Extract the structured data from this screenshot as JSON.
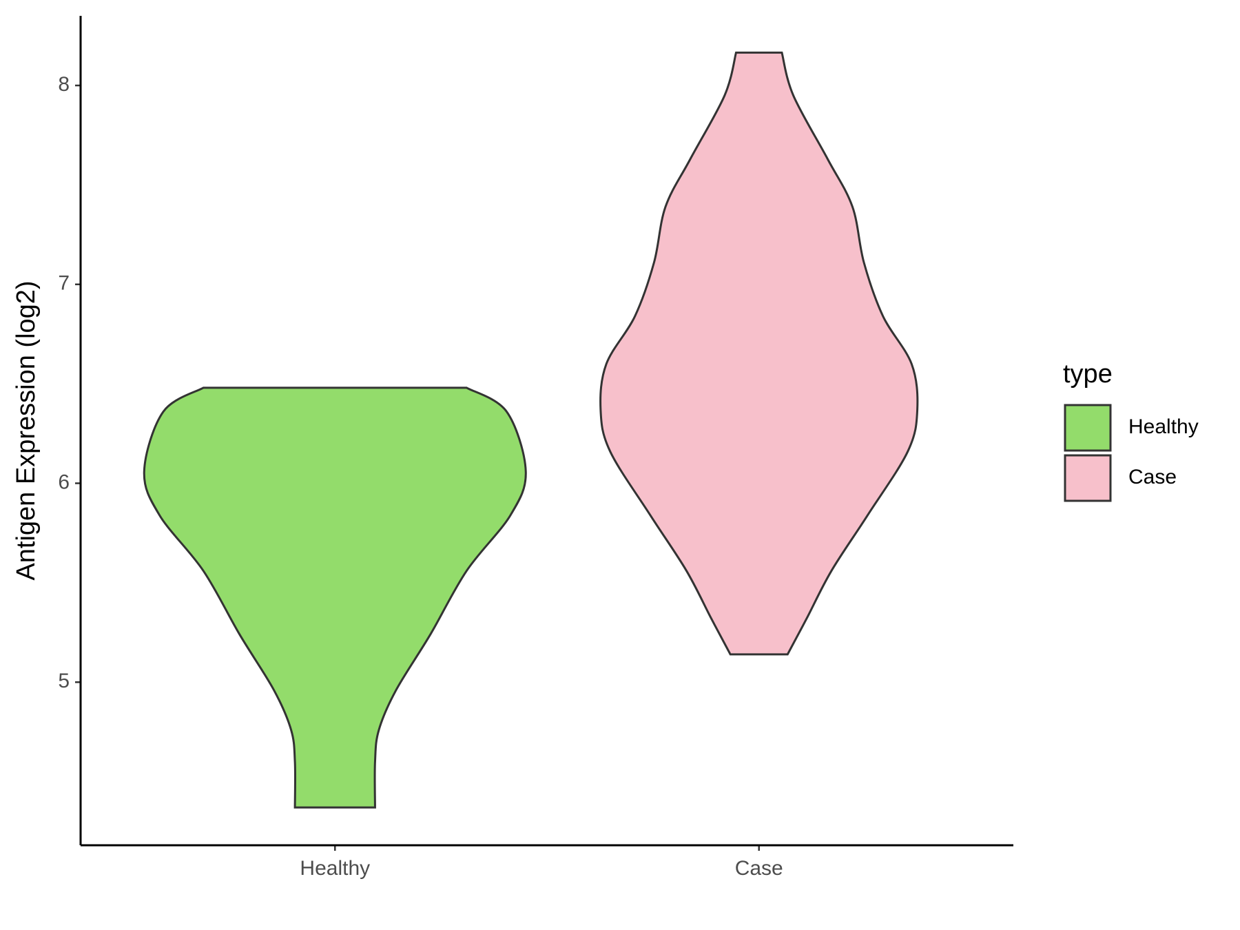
{
  "chart_data": {
    "type": "violin",
    "ylabel": "Antigen Expression (log2)",
    "categories": [
      "Healthy",
      "Case"
    ],
    "legend_title": "type",
    "series": [
      {
        "name": "Healthy",
        "color": "#93dc6b",
        "y": [
          6.48,
          6.36,
          6.06,
          5.84,
          5.56,
          5.24,
          4.96,
          4.76,
          4.6,
          4.37
        ],
        "density": [
          0.69,
          0.9,
          1.0,
          0.92,
          0.69,
          0.5,
          0.32,
          0.23,
          0.21,
          0.21
        ]
      },
      {
        "name": "Case",
        "color": "#f7c0cb",
        "y": [
          8.165,
          7.95,
          7.63,
          7.39,
          7.11,
          6.84,
          6.6,
          6.37,
          6.16,
          5.84,
          5.56,
          5.32,
          5.14
        ],
        "density": [
          0.12,
          0.18,
          0.36,
          0.49,
          0.55,
          0.65,
          0.8,
          0.83,
          0.78,
          0.57,
          0.38,
          0.25,
          0.15
        ]
      }
    ],
    "ylim": [
      4.18,
      8.35
    ],
    "yticks": [
      5,
      6,
      7,
      8
    ]
  }
}
